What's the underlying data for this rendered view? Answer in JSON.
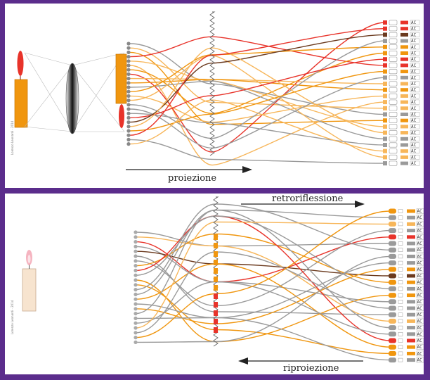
{
  "top_panel": {
    "arrow_label": "proiezione",
    "credit": "Lorenzo Leonardi · 2014",
    "fiber_count": 24,
    "pixel_tag": "AC"
  },
  "bottom_panel": {
    "arrow_label_top": "retroriflessione",
    "arrow_label_bottom": "riproiezione",
    "credit": "Lorenzo Leonardi · 2014",
    "fiber_count": 24,
    "pixel_tag": "AC"
  },
  "colors": {
    "frame": "#5b2d8c",
    "orange": "#f0960f",
    "light_orange": "#f7b65a",
    "red": "#e8332a",
    "brown": "#6b3a1e",
    "gray": "#9a9a9a",
    "dark_gray": "#5a5a5a"
  }
}
